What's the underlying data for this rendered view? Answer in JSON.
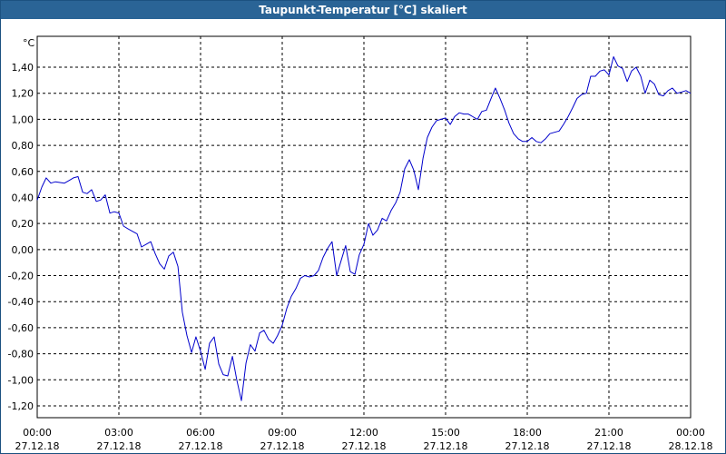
{
  "window": {
    "title": "Taupunkt-Temperatur [°C] skaliert"
  },
  "chart_data": {
    "type": "line",
    "title": "Taupunkt-Temperatur [°C] skaliert",
    "ylabel": "°C",
    "xlabel": "",
    "ylim": [
      -1.3,
      1.6
    ],
    "y_ticks": [
      "1,40",
      "1,20",
      "1,00",
      "0,80",
      "0,60",
      "0,40",
      "0,20",
      "0,00",
      "-0,20",
      "-0,40",
      "-0,60",
      "-0,80",
      "-1,00",
      "-1,20"
    ],
    "y_tick_values": [
      1.4,
      1.2,
      1.0,
      0.8,
      0.6,
      0.4,
      0.2,
      0.0,
      -0.2,
      -0.4,
      -0.6,
      -0.8,
      -1.0,
      -1.2
    ],
    "x_ticks": [
      {
        "hours": 0,
        "time": "00:00",
        "date": "27.12.18"
      },
      {
        "hours": 3,
        "time": "03:00",
        "date": "27.12.18"
      },
      {
        "hours": 6,
        "time": "06:00",
        "date": "27.12.18"
      },
      {
        "hours": 9,
        "time": "09:00",
        "date": "27.12.18"
      },
      {
        "hours": 12,
        "time": "12:00",
        "date": "27.12.18"
      },
      {
        "hours": 15,
        "time": "15:00",
        "date": "27.12.18"
      },
      {
        "hours": 18,
        "time": "18:00",
        "date": "27.12.18"
      },
      {
        "hours": 21,
        "time": "21:00",
        "date": "27.12.18"
      },
      {
        "hours": 24,
        "time": "00:00",
        "date": "28.12.18"
      }
    ],
    "xlim_hours": [
      0,
      24
    ],
    "grid": true,
    "line_color": "#0000cc",
    "series": [
      {
        "x_hours": [
          0,
          0.17,
          0.33,
          0.5,
          0.67,
          1.0,
          1.17,
          1.33,
          1.5,
          1.67,
          1.83,
          2.0,
          2.17,
          2.33,
          2.5,
          2.67,
          2.83,
          3.0,
          3.17,
          3.33,
          3.5,
          3.67,
          3.83,
          4.0,
          4.17,
          4.33,
          4.5,
          4.67,
          4.83,
          5.0,
          5.17,
          5.33,
          5.5,
          5.67,
          5.83,
          6.0,
          6.17,
          6.33,
          6.5,
          6.67,
          6.83,
          7.0,
          7.17,
          7.33,
          7.5,
          7.67,
          7.83,
          8.0,
          8.17,
          8.33,
          8.5,
          8.67,
          8.83,
          9.0,
          9.17,
          9.33,
          9.5,
          9.67,
          9.83,
          10.0,
          10.17,
          10.33,
          10.5,
          10.67,
          10.83,
          11.0,
          11.17,
          11.33,
          11.5,
          11.67,
          11.83,
          12.0,
          12.17,
          12.33,
          12.5,
          12.67,
          12.83,
          13.0,
          13.17,
          13.33,
          13.5,
          13.67,
          13.83,
          14.0,
          14.17,
          14.33,
          14.5,
          14.67,
          14.83,
          15.0,
          15.17,
          15.33,
          15.5,
          15.67,
          15.83,
          16.0,
          16.17,
          16.33,
          16.5,
          16.67,
          16.83,
          17.0,
          17.17,
          17.33,
          17.5,
          17.67,
          17.83,
          18.0,
          18.17,
          18.33,
          18.5,
          18.67,
          18.83,
          19.0,
          19.17,
          19.33,
          19.5,
          19.67,
          19.83,
          20.0,
          20.17,
          20.33,
          20.5,
          20.67,
          20.83,
          21.0,
          21.17,
          21.33,
          21.5,
          21.67,
          21.83,
          22.0,
          22.17,
          22.33,
          22.5,
          22.67,
          22.83,
          23.0,
          23.17,
          23.33,
          23.5,
          23.67,
          23.83,
          24.0
        ],
        "values": [
          0.38,
          0.48,
          0.55,
          0.51,
          0.52,
          0.51,
          0.53,
          0.55,
          0.56,
          0.44,
          0.43,
          0.46,
          0.37,
          0.38,
          0.42,
          0.28,
          0.29,
          0.28,
          0.18,
          0.16,
          0.14,
          0.12,
          0.02,
          0.04,
          0.06,
          -0.03,
          -0.11,
          -0.15,
          -0.05,
          -0.02,
          -0.13,
          -0.48,
          -0.66,
          -0.79,
          -0.67,
          -0.78,
          -0.92,
          -0.72,
          -0.67,
          -0.88,
          -0.96,
          -0.97,
          -0.82,
          -1.0,
          -1.16,
          -0.87,
          -0.73,
          -0.78,
          -0.64,
          -0.62,
          -0.69,
          -0.72,
          -0.66,
          -0.58,
          -0.45,
          -0.36,
          -0.3,
          -0.22,
          -0.2,
          -0.21,
          -0.2,
          -0.16,
          -0.06,
          0.01,
          0.06,
          -0.2,
          -0.08,
          0.03,
          -0.17,
          -0.19,
          -0.04,
          0.04,
          0.2,
          0.11,
          0.15,
          0.24,
          0.22,
          0.3,
          0.36,
          0.44,
          0.62,
          0.69,
          0.61,
          0.46,
          0.7,
          0.86,
          0.94,
          0.99,
          1.0,
          1.01,
          0.96,
          1.02,
          1.05,
          1.04,
          1.04,
          1.02,
          1.0,
          1.06,
          1.07,
          1.16,
          1.24,
          1.16,
          1.07,
          0.97,
          0.89,
          0.85,
          0.83,
          0.83,
          0.86,
          0.83,
          0.82,
          0.85,
          0.89,
          0.9,
          0.91,
          0.96,
          1.02,
          1.09,
          1.16,
          1.19,
          1.2,
          1.33,
          1.33,
          1.37,
          1.38,
          1.34,
          1.48,
          1.41,
          1.39,
          1.29,
          1.37,
          1.4,
          1.33,
          1.2,
          1.3,
          1.27,
          1.19,
          1.18,
          1.22,
          1.24,
          1.2,
          1.21,
          1.22,
          1.2
        ]
      }
    ]
  }
}
